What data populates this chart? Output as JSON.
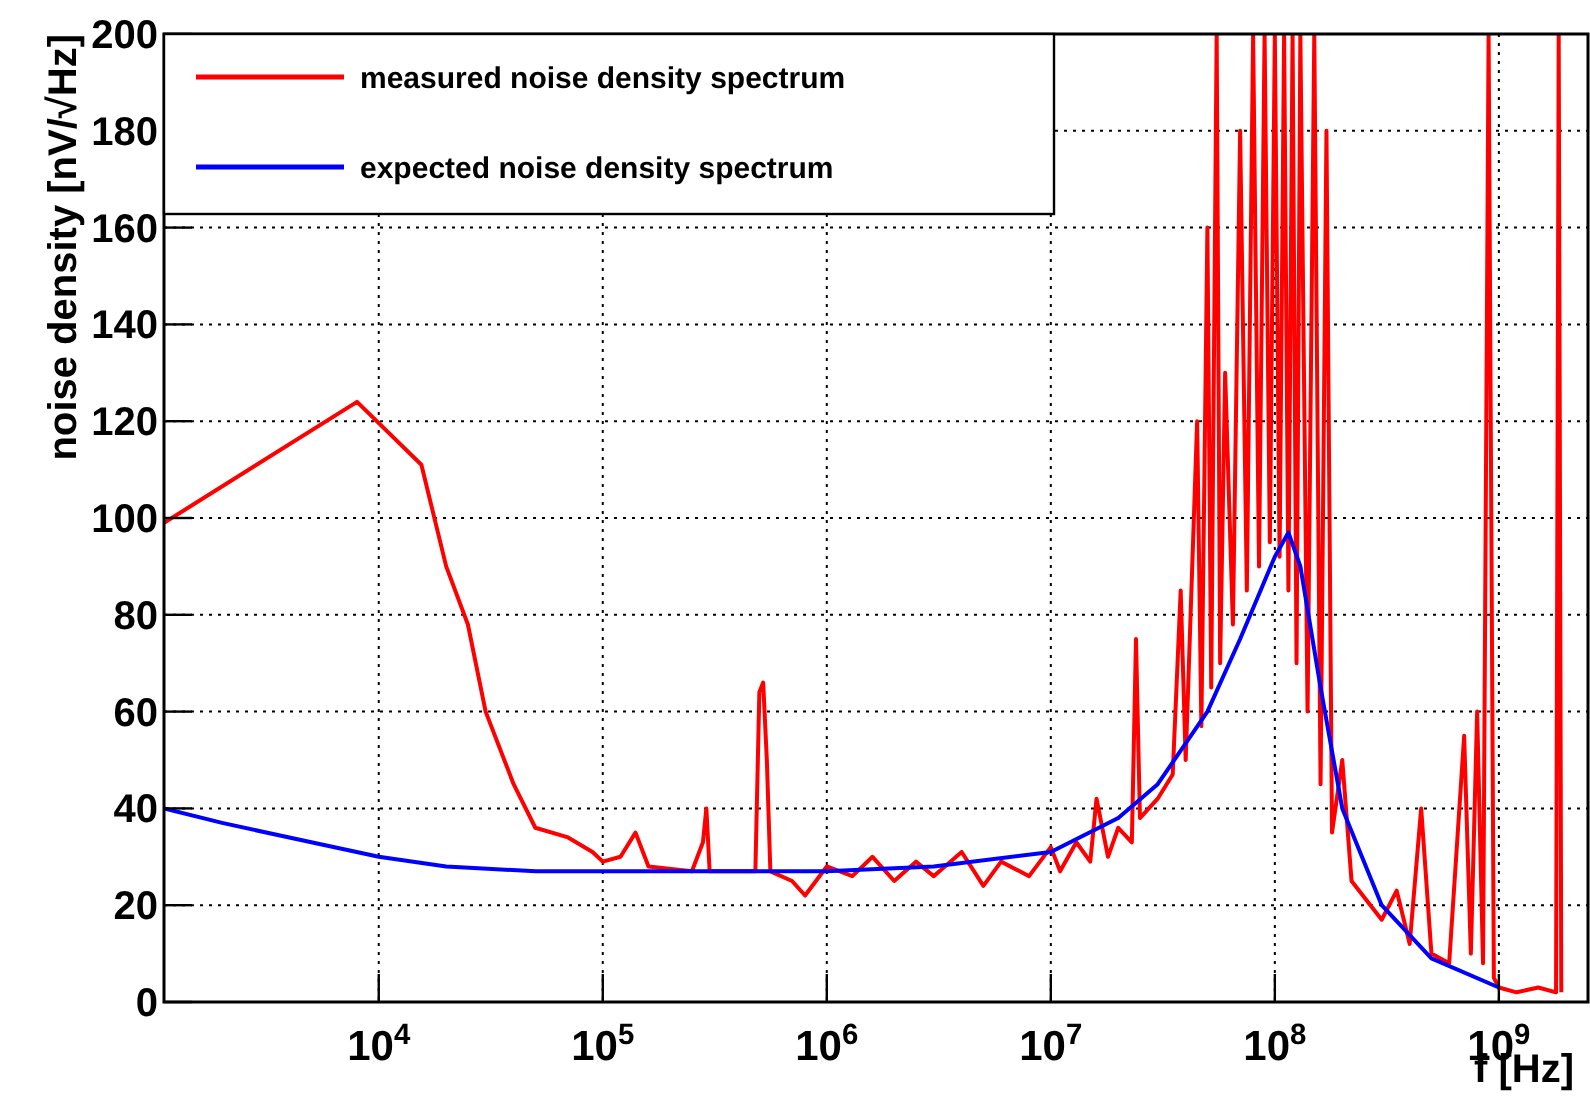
{
  "chart_data": {
    "type": "line",
    "xlabel": "f [Hz]",
    "ylabel": "noise density [nV/√Hz]",
    "log": "x",
    "grid": true,
    "legend": "top left",
    "line_style": "solid",
    "marker": "none",
    "xlim": [
      1100,
      2500000000
    ],
    "ylim": [
      0,
      200
    ],
    "xticks": [
      {
        "value": 10000,
        "label": "10$^{4}$"
      },
      {
        "value": 100000,
        "label": "10$^{5}$"
      },
      {
        "value": 1000000,
        "label": "10$^{6}$"
      },
      {
        "value": 10000000,
        "label": "10$^{7}$"
      },
      {
        "value": 100000000,
        "label": "10$^{8}$"
      },
      {
        "value": 1000000000,
        "label": "10$^{9}$"
      }
    ],
    "yticks": [
      0,
      20,
      40,
      60,
      80,
      100,
      120,
      140,
      160,
      180,
      200
    ],
    "series": [
      {
        "name": "measured noise density spectrum",
        "color": "#ff0000",
        "x": [
          1100,
          8000,
          15500,
          20000,
          25000,
          30000,
          40000,
          50000,
          70000,
          90000,
          100000,
          120000,
          140000,
          160000,
          250000,
          280000,
          290000,
          300000,
          480000,
          500000,
          520000,
          540000,
          560000,
          700000,
          800000,
          1000000,
          1300000,
          1600000,
          2000000,
          2500000,
          3000000,
          4000000,
          5000000,
          6000000,
          8000000,
          10000000,
          11000000,
          13000000,
          15000000,
          16000000,
          18000000,
          20000000,
          23000000,
          24000000,
          25000000,
          30000000,
          35000000,
          38000000,
          40000000,
          45000000,
          47000000,
          50000000,
          52000000,
          55000000,
          57000000,
          60000000,
          65000000,
          70000000,
          75000000,
          80000000,
          85000000,
          90000000,
          95000000,
          100000000,
          105000000,
          110000000,
          115000000,
          120000000,
          125000000,
          130000000,
          140000000,
          150000000,
          160000000,
          170000000,
          180000000,
          200000000,
          220000000,
          300000000,
          350000000,
          400000000,
          450000000,
          500000000,
          600000000,
          700000000,
          750000000,
          800000000,
          850000000,
          900000000,
          950000000,
          1000000000,
          1200000000,
          1500000000,
          1800000000,
          1850000000,
          1900000000
        ],
        "values": [
          99,
          124,
          111,
          90,
          78,
          60,
          45,
          36,
          34,
          31,
          29,
          30,
          35,
          28,
          27,
          33,
          40,
          27,
          27,
          64,
          66,
          50,
          27,
          25,
          22,
          28,
          26,
          30,
          25,
          29,
          26,
          31,
          24,
          29,
          26,
          32,
          27,
          33,
          29,
          42,
          30,
          36,
          33,
          75,
          38,
          42,
          47,
          85,
          50,
          120,
          57,
          160,
          65,
          200,
          70,
          130,
          78,
          180,
          85,
          200,
          90,
          200,
          95,
          200,
          92,
          200,
          85,
          200,
          70,
          200,
          60,
          200,
          45,
          180,
          35,
          50,
          25,
          17,
          23,
          12,
          40,
          10,
          8,
          55,
          10,
          60,
          8,
          200,
          5,
          3,
          2,
          3,
          2,
          200,
          2
        ]
      },
      {
        "name": "expected noise density spectrum",
        "color": "#0000ff",
        "x": [
          1100,
          2000,
          5000,
          10000,
          20000,
          50000,
          100000,
          1000000,
          3000000,
          10000000,
          20000000,
          30000000,
          50000000,
          70000000,
          100000000,
          115000000,
          130000000,
          160000000,
          200000000,
          300000000,
          500000000,
          1000000000
        ],
        "values": [
          40,
          37,
          33,
          30,
          28,
          27,
          27,
          27,
          28,
          31,
          38,
          45,
          60,
          75,
          92,
          97,
          90,
          65,
          40,
          20,
          9,
          3
        ]
      }
    ]
  }
}
